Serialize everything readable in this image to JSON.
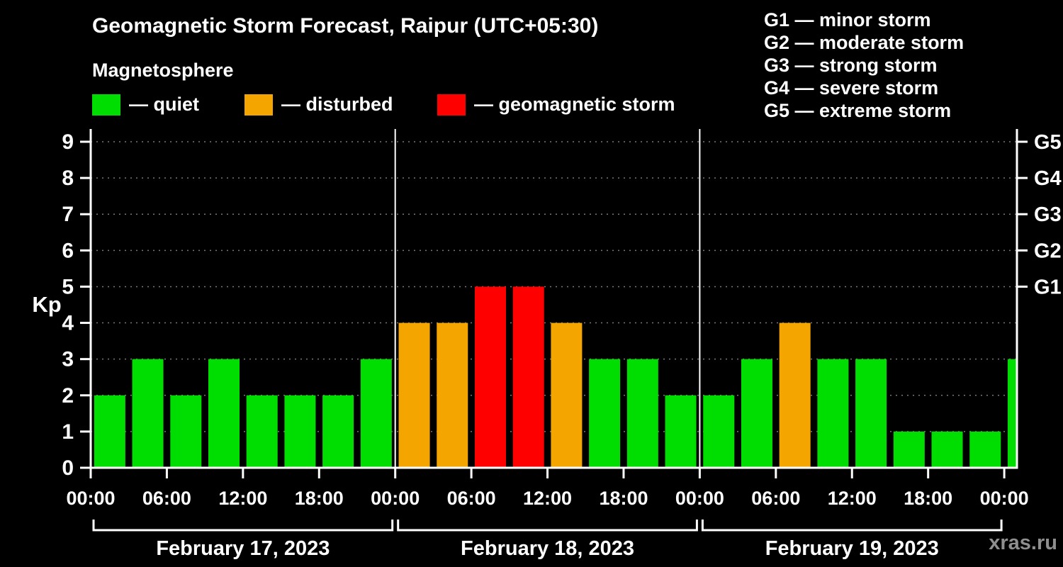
{
  "header": {
    "title": "Geomagnetic Storm Forecast, Raipur (UTC+05:30)",
    "subtitle": "Magnetosphere"
  },
  "legend": {
    "items": [
      {
        "label": "— quiet",
        "status": "quiet"
      },
      {
        "label": "— disturbed",
        "status": "disturbed"
      },
      {
        "label": "— geomagnetic storm",
        "status": "storm"
      }
    ]
  },
  "g_legend": {
    "items": [
      "G1 — minor storm",
      "G2 — moderate storm",
      "G3 — strong storm",
      "G4 — severe storm",
      "G5 — extreme storm"
    ]
  },
  "watermark": "xras.ru",
  "chart_data": {
    "type": "bar",
    "title": "Geomagnetic Storm Forecast, Raipur (UTC+05:30)",
    "subtitle": "Magnetosphere",
    "ylabel": "Kp",
    "ylim": [
      0,
      9.35
    ],
    "x_hours_range": [
      0,
      73
    ],
    "interval_hours": 3,
    "grid": "dotted-horizontal",
    "legend_position": "top",
    "yticks": [
      0,
      1,
      2,
      3,
      4,
      5,
      6,
      7,
      8,
      9
    ],
    "x_ticks": [
      {
        "hour": 0,
        "label": "00:00"
      },
      {
        "hour": 6,
        "label": "06:00"
      },
      {
        "hour": 12,
        "label": "12:00"
      },
      {
        "hour": 18,
        "label": "18:00"
      },
      {
        "hour": 24,
        "label": "00:00"
      },
      {
        "hour": 30,
        "label": "06:00"
      },
      {
        "hour": 36,
        "label": "12:00"
      },
      {
        "hour": 42,
        "label": "18:00"
      },
      {
        "hour": 48,
        "label": "00:00"
      },
      {
        "hour": 54,
        "label": "06:00"
      },
      {
        "hour": 60,
        "label": "12:00"
      },
      {
        "hour": 66,
        "label": "18:00"
      },
      {
        "hour": 72,
        "label": "00:00"
      }
    ],
    "g_levels": [
      {
        "kp": 5,
        "label": "G1"
      },
      {
        "kp": 6,
        "label": "G2"
      },
      {
        "kp": 7,
        "label": "G3"
      },
      {
        "kp": 8,
        "label": "G4"
      },
      {
        "kp": 9,
        "label": "G5"
      }
    ],
    "days": [
      {
        "label": "February 17, 2023",
        "start_hour": 0,
        "end_hour": 24
      },
      {
        "label": "February 18, 2023",
        "start_hour": 24,
        "end_hour": 48
      },
      {
        "label": "February 19, 2023",
        "start_hour": 48,
        "end_hour": 72
      }
    ],
    "colors": {
      "quiet": "#00dd00",
      "disturbed": "#f5a500",
      "storm": "#ff0000",
      "axis": "#ffffff",
      "grid": "#787878",
      "text": "#ffffff",
      "watermark": "#8f8f8f",
      "background": "#000000"
    },
    "bars": [
      {
        "start_hour": 0,
        "kp": 2,
        "status": "quiet"
      },
      {
        "start_hour": 3,
        "kp": 3,
        "status": "quiet"
      },
      {
        "start_hour": 6,
        "kp": 2,
        "status": "quiet"
      },
      {
        "start_hour": 9,
        "kp": 3,
        "status": "quiet"
      },
      {
        "start_hour": 12,
        "kp": 2,
        "status": "quiet"
      },
      {
        "start_hour": 15,
        "kp": 2,
        "status": "quiet"
      },
      {
        "start_hour": 18,
        "kp": 2,
        "status": "quiet"
      },
      {
        "start_hour": 21,
        "kp": 3,
        "status": "quiet"
      },
      {
        "start_hour": 24,
        "kp": 4,
        "status": "disturbed"
      },
      {
        "start_hour": 27,
        "kp": 4,
        "status": "disturbed"
      },
      {
        "start_hour": 30,
        "kp": 5,
        "status": "storm"
      },
      {
        "start_hour": 33,
        "kp": 5,
        "status": "storm"
      },
      {
        "start_hour": 36,
        "kp": 4,
        "status": "disturbed"
      },
      {
        "start_hour": 39,
        "kp": 3,
        "status": "quiet"
      },
      {
        "start_hour": 42,
        "kp": 3,
        "status": "quiet"
      },
      {
        "start_hour": 45,
        "kp": 2,
        "status": "quiet"
      },
      {
        "start_hour": 48,
        "kp": 2,
        "status": "quiet"
      },
      {
        "start_hour": 51,
        "kp": 3,
        "status": "quiet"
      },
      {
        "start_hour": 54,
        "kp": 4,
        "status": "disturbed"
      },
      {
        "start_hour": 57,
        "kp": 3,
        "status": "quiet"
      },
      {
        "start_hour": 60,
        "kp": 3,
        "status": "quiet"
      },
      {
        "start_hour": 63,
        "kp": 1,
        "status": "quiet"
      },
      {
        "start_hour": 66,
        "kp": 1,
        "status": "quiet"
      },
      {
        "start_hour": 69,
        "kp": 1,
        "status": "quiet"
      },
      {
        "start_hour": 72,
        "kp": 3,
        "status": "quiet",
        "clipped": true
      }
    ]
  }
}
